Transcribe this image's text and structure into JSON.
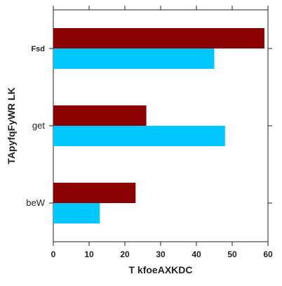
{
  "chart_data": {
    "type": "bar",
    "orientation": "horizontal",
    "categories": [
      "beW",
      "get",
      "Fsd"
    ],
    "category_bold": [
      false,
      false,
      true
    ],
    "series": [
      {
        "values": [
          13,
          48,
          45
        ],
        "color": "#00c8ff"
      },
      {
        "values": [
          23,
          26,
          59
        ],
        "color": "#8b0000"
      }
    ],
    "xlabel": "T kfoeAXKDC",
    "ylabel": "TApyfqFyWR LK",
    "xlim": [
      0,
      60
    ],
    "xticks": [
      0,
      10,
      20,
      30,
      40,
      50,
      60
    ],
    "grid": false,
    "legend": "none"
  }
}
